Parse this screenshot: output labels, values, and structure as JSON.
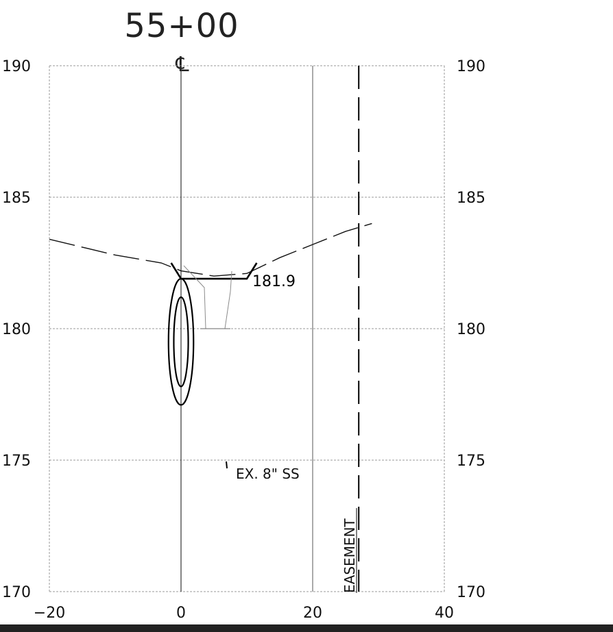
{
  "station_title": "55+00",
  "centerline_symbol": "℄",
  "x_axis": {
    "ticks": [
      "−20",
      "0",
      "20",
      "40"
    ],
    "range": [
      -20,
      40
    ]
  },
  "y_axis": {
    "ticks": [
      "190",
      "185",
      "180",
      "175",
      "170"
    ],
    "range": [
      170,
      190
    ]
  },
  "labels": {
    "elevation": "181.9",
    "pipe_note": "EX. 8\" SS",
    "easement": "EASEMENT"
  },
  "chart_data": {
    "type": "cross-section",
    "xlim": [
      -20,
      40
    ],
    "ylim": [
      170,
      190
    ],
    "grid": true,
    "existing_ground": [
      [
        -20,
        183.4
      ],
      [
        -10,
        182.8
      ],
      [
        -3,
        182.5
      ],
      [
        0,
        182.2
      ],
      [
        5,
        182.0
      ],
      [
        10,
        182.1
      ],
      [
        15,
        182.7
      ],
      [
        20,
        183.2
      ],
      [
        25,
        183.7
      ],
      [
        29,
        184.0
      ]
    ],
    "proposed_section": [
      [
        -1.5,
        182.5
      ],
      [
        0,
        181.9
      ],
      [
        10,
        181.9
      ],
      [
        11.5,
        182.5
      ]
    ],
    "proposed_elevation": 181.9,
    "pipe_ellipses": [
      {
        "cx": 0,
        "cy": 179.5,
        "rx": 1.1,
        "ry": 1.7
      },
      {
        "cx": 0,
        "cy": 179.5,
        "rx": 1.9,
        "ry": 2.4
      }
    ],
    "easement_x": 27
  }
}
